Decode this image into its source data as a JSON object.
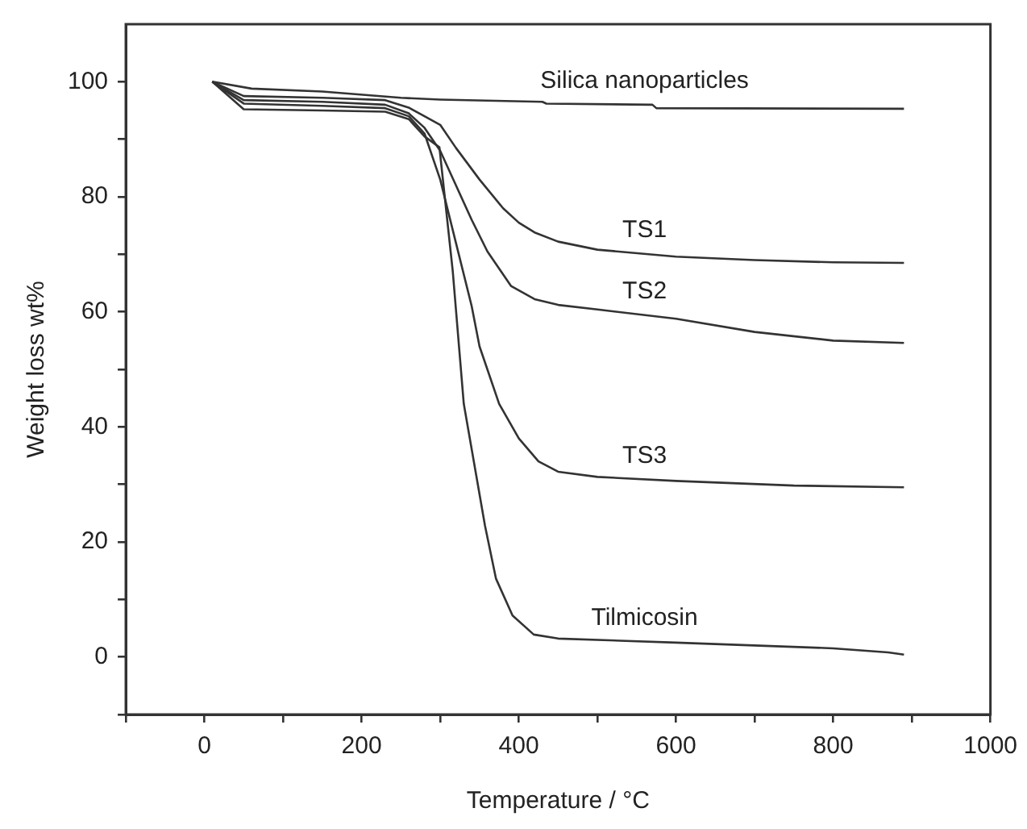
{
  "chart_data": {
    "type": "line",
    "xlabel": "Temperature / °C",
    "ylabel": "Weight loss wt%",
    "xlim": [
      -100,
      1000
    ],
    "ylim": [
      -10,
      110
    ],
    "xticks": [
      {
        "value": -100,
        "label": null
      },
      0,
      {
        "value": 100,
        "label": null
      },
      200,
      {
        "value": 300,
        "label": null
      },
      400,
      {
        "value": 500,
        "label": null
      },
      600,
      {
        "value": 700,
        "label": null
      },
      800,
      {
        "value": 900,
        "label": null
      },
      1000
    ],
    "yticks": [
      {
        "value": -10,
        "label": null
      },
      0,
      {
        "value": 10,
        "label": null
      },
      20,
      {
        "value": 30,
        "label": null
      },
      40,
      {
        "value": 50,
        "label": null
      },
      60,
      {
        "value": 70,
        "label": null
      },
      80,
      {
        "value": 90,
        "label": null
      },
      100
    ],
    "grid": false,
    "legend": false,
    "marker": "none",
    "line_style": "solid",
    "series": [
      {
        "name": "Silica nanoparticles",
        "color": "#333333",
        "x": [
          10,
          60,
          150,
          250,
          300,
          430,
          435,
          570,
          575,
          890
        ],
        "values": [
          100,
          98.8,
          98.3,
          97.2,
          96.9,
          96.5,
          96.2,
          96.0,
          95.4,
          95.3
        ]
      },
      {
        "name": "TS1",
        "color": "#333333",
        "x": [
          10,
          50,
          150,
          230,
          260,
          280,
          300,
          320,
          350,
          380,
          400,
          420,
          450,
          500,
          600,
          700,
          800,
          890
        ],
        "values": [
          100,
          97.5,
          97.2,
          96.8,
          95.5,
          94,
          92.5,
          88.5,
          83,
          78,
          75.5,
          73.8,
          72.2,
          70.8,
          69.6,
          69,
          68.6,
          68.5
        ]
      },
      {
        "name": "TS2",
        "color": "#333333",
        "x": [
          10,
          50,
          150,
          230,
          260,
          280,
          300,
          320,
          340,
          360,
          390,
          420,
          450,
          500,
          600,
          700,
          800,
          890
        ],
        "values": [
          100,
          96.8,
          96.5,
          96,
          94.5,
          92,
          88,
          82,
          76,
          70.5,
          64.5,
          62.2,
          61.2,
          60.4,
          58.8,
          56.5,
          55,
          54.6
        ]
      },
      {
        "name": "TS3",
        "color": "#333333",
        "x": [
          10,
          50,
          150,
          230,
          260,
          280,
          300,
          320,
          340,
          350,
          375,
          400,
          425,
          450,
          500,
          600,
          750,
          890
        ],
        "values": [
          100,
          96.2,
          95.8,
          95.4,
          94,
          91,
          83,
          72,
          61,
          54,
          44,
          38,
          34,
          32.2,
          31.3,
          30.6,
          29.8,
          29.5
        ]
      },
      {
        "name": "Tilmicosin",
        "color": "#333333",
        "x": [
          10,
          50,
          150,
          230,
          260,
          280,
          299,
          316,
          330,
          357,
          371,
          392,
          419,
          450,
          600,
          800,
          870,
          890
        ],
        "values": [
          100,
          95.2,
          95,
          94.8,
          93.5,
          90.5,
          88.6,
          67,
          44,
          22.8,
          13.6,
          7.2,
          3.9,
          3.2,
          2.5,
          1.5,
          0.8,
          0.4
        ]
      }
    ]
  }
}
